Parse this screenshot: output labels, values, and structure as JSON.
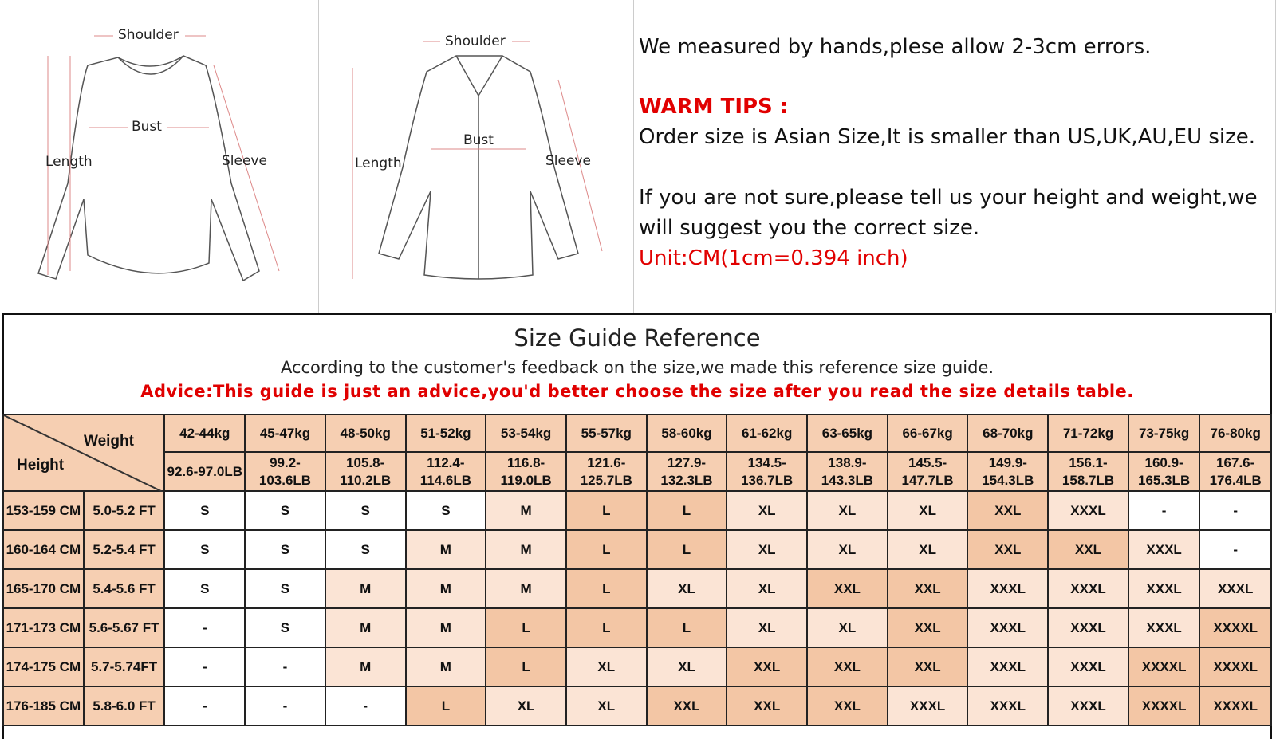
{
  "diagram_tshirt": {
    "labels": [
      "Shoulder",
      "Bust",
      "Length",
      "Sleeve"
    ]
  },
  "diagram_shirt": {
    "labels": [
      "Shoulder",
      "Bust",
      "Length",
      "Sleeve"
    ]
  },
  "notes": {
    "measured": "We measured by hands,plese allow 2-3cm errors.",
    "warm_title": "WARM TIPS :",
    "order_size": "Order size is Asian Size,It is smaller than US,UK,AU,EU size.",
    "not_sure": "If you are not sure,please tell us your height and weight,we will suggest you the correct size.",
    "unit": "Unit:CM(1cm=0.394 inch)"
  },
  "guide": {
    "title": "Size Guide Reference",
    "subtitle": "According to the customer's feedback on the size,we made this reference size guide.",
    "advice": "Advice:This guide is just an advice,you'd better choose the size after you read the size details table.",
    "corner_weight": "Weight",
    "corner_height": "Height",
    "weights_kg": [
      "42-44kg",
      "45-47kg",
      "48-50kg",
      "51-52kg",
      "53-54kg",
      "55-57kg",
      "58-60kg",
      "61-62kg",
      "63-65kg",
      "66-67kg",
      "68-70kg",
      "71-72kg",
      "73-75kg",
      "76-80kg"
    ],
    "weights_lb": [
      "92.6-97.0LB",
      "99.2-103.6LB",
      "105.8-110.2LB",
      "112.4-114.6LB",
      "116.8-119.0LB",
      "121.6-125.7LB",
      "127.9-132.3LB",
      "134.5-136.7LB",
      "138.9-143.3LB",
      "145.5-147.7LB",
      "149.9-154.3LB",
      "156.1-158.7LB",
      "160.9-165.3LB",
      "167.6-176.4LB"
    ],
    "colors": {
      "header": "#f6cfb2",
      "light": "#fbe4d5",
      "dark": "#f3c6a5",
      "white": "#ffffff"
    },
    "rows": [
      {
        "cm": "153-159 CM",
        "ft": "5.0-5.2 FT",
        "sizes": [
          "S",
          "S",
          "S",
          "S",
          "M",
          "L",
          "L",
          "XL",
          "XL",
          "XL",
          "XXL",
          "XXXL",
          "-",
          "-"
        ],
        "shade": [
          0,
          0,
          0,
          0,
          1,
          2,
          2,
          1,
          1,
          1,
          2,
          1,
          0,
          0
        ]
      },
      {
        "cm": "160-164 CM",
        "ft": "5.2-5.4 FT",
        "sizes": [
          "S",
          "S",
          "S",
          "M",
          "M",
          "L",
          "L",
          "XL",
          "XL",
          "XL",
          "XXL",
          "XXL",
          "XXXL",
          "-"
        ],
        "shade": [
          0,
          0,
          0,
          1,
          1,
          2,
          2,
          1,
          1,
          1,
          2,
          2,
          1,
          0
        ]
      },
      {
        "cm": "165-170 CM",
        "ft": "5.4-5.6 FT",
        "sizes": [
          "S",
          "S",
          "M",
          "M",
          "M",
          "L",
          "XL",
          "XL",
          "XXL",
          "XXL",
          "XXXL",
          "XXXL",
          "XXXL",
          "XXXL"
        ],
        "shade": [
          0,
          0,
          1,
          1,
          1,
          2,
          1,
          1,
          2,
          2,
          1,
          1,
          1,
          1
        ]
      },
      {
        "cm": "171-173 CM",
        "ft": "5.6-5.67 FT",
        "sizes": [
          "-",
          "S",
          "M",
          "M",
          "L",
          "L",
          "L",
          "XL",
          "XL",
          "XXL",
          "XXXL",
          "XXXL",
          "XXXL",
          "XXXXL"
        ],
        "shade": [
          0,
          0,
          1,
          1,
          2,
          2,
          2,
          1,
          1,
          2,
          1,
          1,
          1,
          2
        ]
      },
      {
        "cm": "174-175 CM",
        "ft": "5.7-5.74FT",
        "sizes": [
          "-",
          "-",
          "M",
          "M",
          "L",
          "XL",
          "XL",
          "XXL",
          "XXL",
          "XXL",
          "XXXL",
          "XXXL",
          "XXXXL",
          "XXXXL"
        ],
        "shade": [
          0,
          0,
          1,
          1,
          2,
          1,
          1,
          2,
          2,
          2,
          1,
          1,
          2,
          2
        ]
      },
      {
        "cm": "176-185 CM",
        "ft": "5.8-6.0 FT",
        "sizes": [
          "-",
          "-",
          "-",
          "L",
          "XL",
          "XL",
          "XXL",
          "XXL",
          "XXL",
          "XXXL",
          "XXXL",
          "XXXL",
          "XXXXL",
          "XXXXL"
        ],
        "shade": [
          0,
          0,
          0,
          2,
          1,
          1,
          2,
          2,
          2,
          1,
          1,
          1,
          2,
          2
        ]
      }
    ]
  }
}
